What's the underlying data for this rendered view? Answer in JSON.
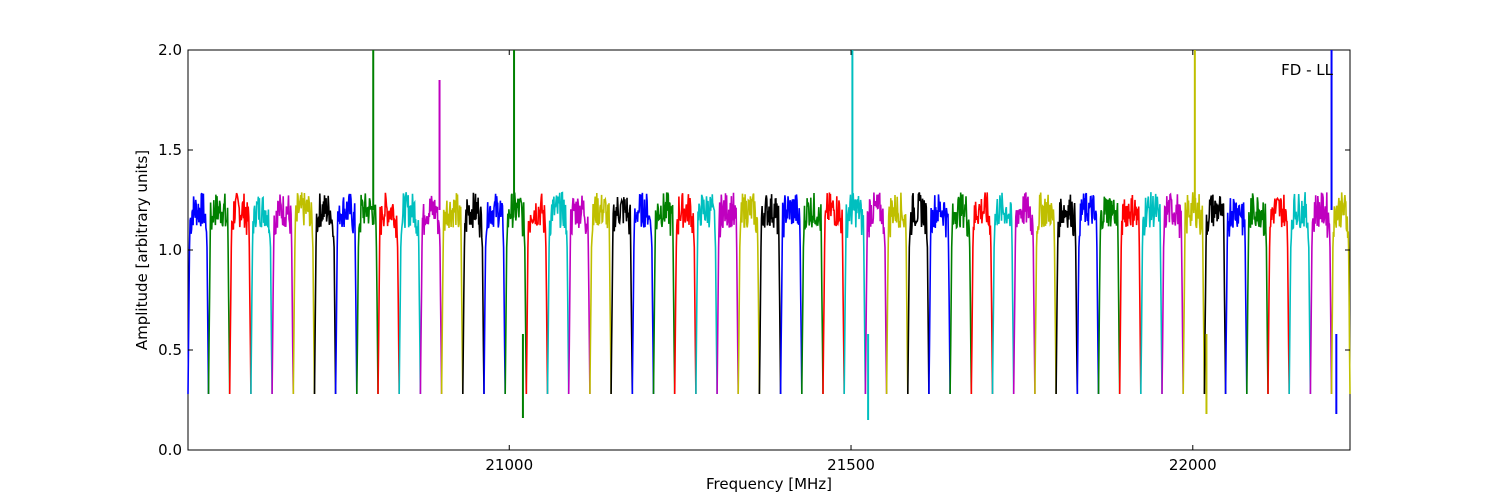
{
  "chart_data": {
    "type": "line",
    "title": "",
    "annotation": "FD - LL",
    "xlabel": "Frequency [MHz]",
    "ylabel": "Amplitude [arbitrary units]",
    "xlim": [
      20530,
      22230
    ],
    "ylim": [
      0.0,
      2.0
    ],
    "x_ticks": [
      21000,
      21500,
      22000
    ],
    "x_tick_labels": [
      "21000",
      "21500",
      "22000"
    ],
    "y_ticks": [
      0.0,
      0.5,
      1.0,
      1.5,
      2.0
    ],
    "y_tick_labels": [
      "0.0",
      "0.5",
      "1.0",
      "1.5",
      "2.0"
    ],
    "grid": false,
    "legend": "none",
    "color_cycle": [
      "#0000ff",
      "#008000",
      "#ff0000",
      "#00bfbf",
      "#bf00bf",
      "#bfbf00",
      "#000000"
    ],
    "spw_ranges": [
      [
        20530,
        20560
      ],
      [
        20560,
        20591
      ],
      [
        20591,
        20622
      ],
      [
        20622,
        20653
      ],
      [
        20653,
        20684
      ],
      [
        20684,
        20715
      ],
      [
        20715,
        20746
      ],
      [
        20746,
        20777
      ],
      [
        20777,
        20808
      ],
      [
        20808,
        20839
      ],
      [
        20839,
        20870
      ],
      [
        20870,
        20901
      ],
      [
        20901,
        20932
      ],
      [
        20932,
        20963
      ],
      [
        20963,
        20994
      ],
      [
        20994,
        21025
      ],
      [
        21025,
        21056
      ],
      [
        21056,
        21087
      ],
      [
        21087,
        21118
      ],
      [
        21118,
        21149
      ],
      [
        21149,
        21180
      ],
      [
        21180,
        21211
      ],
      [
        21211,
        21242
      ],
      [
        21242,
        21273
      ],
      [
        21273,
        21304
      ],
      [
        21304,
        21335
      ],
      [
        21335,
        21366
      ],
      [
        21366,
        21397
      ],
      [
        21397,
        21428
      ],
      [
        21428,
        21459
      ],
      [
        21459,
        21490
      ],
      [
        21490,
        21521
      ],
      [
        21521,
        21552
      ],
      [
        21552,
        21583
      ],
      [
        21583,
        21614
      ],
      [
        21614,
        21645
      ],
      [
        21645,
        21676
      ],
      [
        21676,
        21707
      ],
      [
        21707,
        21738
      ],
      [
        21738,
        21769
      ],
      [
        21769,
        21800
      ],
      [
        21800,
        21831
      ],
      [
        21831,
        21862
      ],
      [
        21862,
        21893
      ],
      [
        21893,
        21924
      ],
      [
        21924,
        21955
      ],
      [
        21955,
        21986
      ],
      [
        21986,
        22017
      ],
      [
        22017,
        22048
      ],
      [
        22048,
        22079
      ],
      [
        22079,
        22110
      ],
      [
        22110,
        22141
      ],
      [
        22141,
        22172
      ],
      [
        22172,
        22203
      ],
      [
        22203,
        22230
      ]
    ],
    "plateau_level": 1.2,
    "edge_dip_level": 0.28,
    "spikes": [
      {
        "x": 20801,
        "y": 2.0,
        "color": "#008000"
      },
      {
        "x": 20898,
        "y": 1.85,
        "color": "#bf00bf"
      },
      {
        "x": 21007,
        "y": 2.0,
        "color": "#008000"
      },
      {
        "x": 21502,
        "y": 2.0,
        "color": "#00bfbf"
      },
      {
        "x": 22003,
        "y": 2.0,
        "color": "#bfbf00"
      },
      {
        "x": 22203,
        "y": 2.0,
        "color": "#0000ff"
      }
    ],
    "deep_dips": [
      {
        "x": 21020,
        "y": 0.16,
        "color": "#008000"
      },
      {
        "x": 21525,
        "y": 0.15,
        "color": "#00bfbf"
      },
      {
        "x": 22020,
        "y": 0.18,
        "color": "#bfbf00"
      },
      {
        "x": 22210,
        "y": 0.18,
        "color": "#0000ff"
      }
    ]
  }
}
